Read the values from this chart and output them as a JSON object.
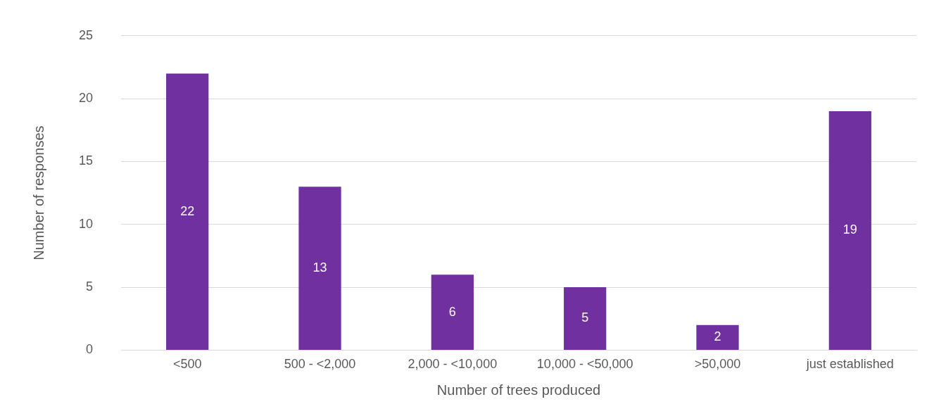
{
  "chart_data": {
    "type": "bar",
    "xlabel": "Number of trees produced",
    "ylabel": "Number of responses",
    "categories": [
      "<500",
      "500 - <2,000",
      "2,000 - <10,000",
      "10,000 - <50,000",
      ">50,000",
      "just established"
    ],
    "values": [
      22,
      13,
      6,
      5,
      2,
      19
    ],
    "color": "#7030a0",
    "ylim": [
      0,
      25
    ],
    "yticks": [
      0,
      5,
      10,
      15,
      20,
      25
    ],
    "grid": "y",
    "legend": false,
    "data_labels": true
  }
}
